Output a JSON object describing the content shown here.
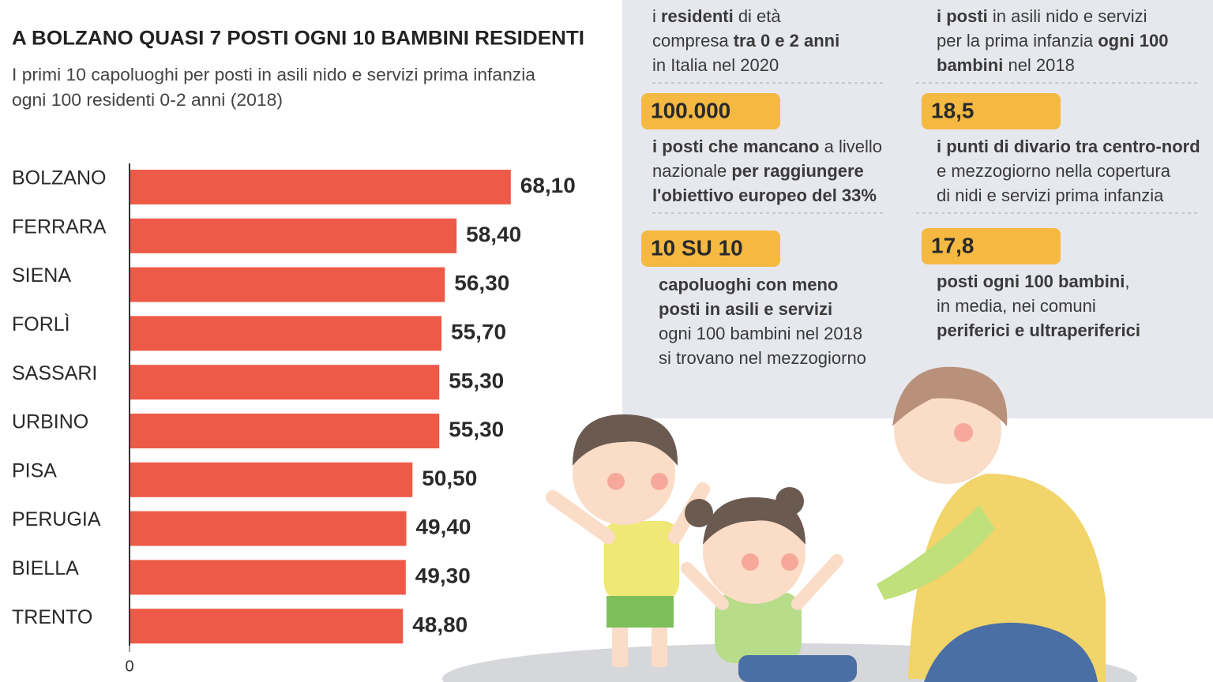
{
  "chart_data": {
    "type": "bar",
    "orientation": "horizontal",
    "title": "A BOLZANO QUASI 7 POSTI OGNI 10 BAMBINI RESIDENTI",
    "subtitle": [
      "I primi 10 capoluoghi per posti in asili nido e servizi prima infanzia",
      "ogni 100 residenti 0-2 anni (2018)"
    ],
    "categories": [
      "BOLZANO",
      "FERRARA",
      "SIENA",
      "FORLÌ",
      "SASSARI",
      "URBINO",
      "PISA",
      "PERUGIA",
      "BIELLA",
      "TRENTO"
    ],
    "values": [
      68.1,
      58.4,
      56.3,
      55.7,
      55.3,
      55.3,
      50.5,
      49.4,
      49.3,
      48.8
    ],
    "value_labels": [
      "68,10",
      "58,40",
      "56,30",
      "55,70",
      "55,30",
      "55,30",
      "50,50",
      "49,40",
      "49,30",
      "48,80"
    ],
    "color": "#ee5a48",
    "xlim": [
      0,
      80
    ],
    "xticks": [
      0
    ]
  },
  "stats": [
    {
      "lines": [
        [
          {
            "text": "i "
          },
          {
            "text": "residenti",
            "bold": true
          },
          {
            "text": " di età"
          }
        ],
        [
          {
            "text": "compresa "
          },
          {
            "text": "tra 0 e 2 anni",
            "bold": true
          }
        ],
        [
          {
            "text": "in Italia nel 2020"
          }
        ]
      ]
    },
    {
      "lines": [
        [
          {
            "text": "i posti",
            "bold": true
          },
          {
            "text": " in asili nido e servizi"
          }
        ],
        [
          {
            "text": "per la prima infanzia "
          },
          {
            "text": "ogni 100",
            "bold": true
          }
        ],
        [
          {
            "text": "bambini",
            "bold": true
          },
          {
            "text": " nel 2018"
          }
        ]
      ]
    },
    {
      "value": "100.000",
      "lines": [
        [
          {
            "text": "i posti che mancano",
            "bold": true
          },
          {
            "text": " a livello"
          }
        ],
        [
          {
            "text": "nazionale "
          },
          {
            "text": "per raggiungere",
            "bold": true
          }
        ],
        [
          {
            "text": "l'obiettivo europeo del 33%",
            "bold": true
          }
        ]
      ]
    },
    {
      "value": "18,5",
      "lines": [
        [
          {
            "text": "i punti di divario tra centro-nord",
            "bold": true
          }
        ],
        [
          {
            "text": "e mezzogiorno nella copertura"
          }
        ],
        [
          {
            "text": "di nidi e servizi prima infanzia"
          }
        ]
      ]
    },
    {
      "value": "10 SU 10",
      "lines": [
        [
          {
            "text": "capoluoghi con meno",
            "bold": true
          }
        ],
        [
          {
            "text": "posti in asili e servizi",
            "bold": true
          }
        ],
        [
          {
            "text": "ogni 100 bambini nel 2018"
          }
        ],
        [
          {
            "text": "si trovano nel mezzogiorno"
          }
        ]
      ]
    },
    {
      "value": "17,8",
      "lines": [
        [
          {
            "text": "posti ogni 100 bambini",
            "bold": true
          },
          {
            "text": ","
          }
        ],
        [
          {
            "text": "in media, nei comuni"
          }
        ],
        [
          {
            "text": "periferici e ultraperiferici",
            "bold": true
          }
        ]
      ]
    }
  ]
}
